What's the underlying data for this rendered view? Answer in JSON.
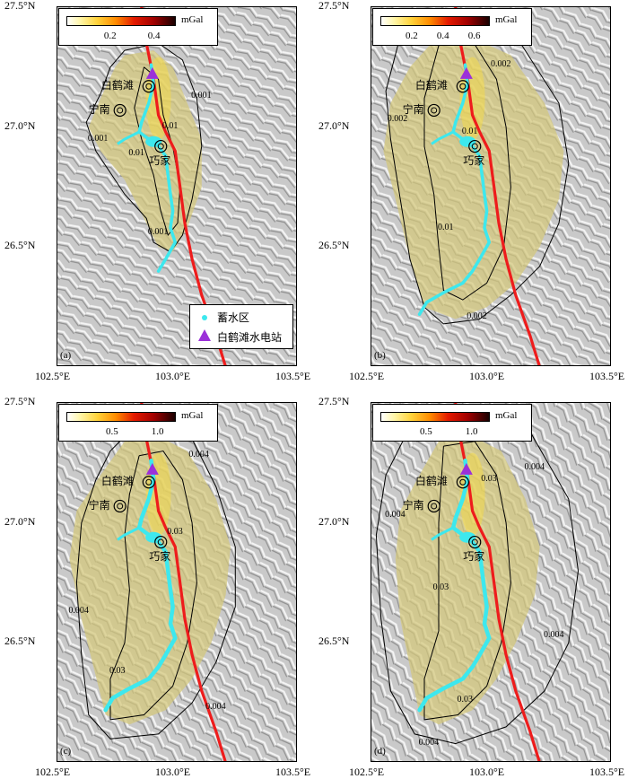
{
  "axes": {
    "lon_ticks": [
      "102.5°E",
      "103.0°E",
      "103.5°E"
    ],
    "lat_ticks": [
      "27.5°N",
      "27.0°N",
      "26.5°N"
    ]
  },
  "places": {
    "baihetan": "白鹤滩",
    "ningnan": "宁南",
    "qiaojia": "巧家"
  },
  "colorbar_unit": "mGal",
  "panels": [
    {
      "letter": "(a)",
      "colorbar_ticks": [
        "0.2",
        "0.4"
      ],
      "contours": [
        "0.001",
        "0.01",
        "0.001",
        "0.01",
        "0.001"
      ]
    },
    {
      "letter": "(b)",
      "colorbar_ticks": [
        "0.2",
        "0.4",
        "0.6"
      ],
      "contours": [
        "0.002",
        "0.002",
        "0.01",
        "0.01",
        "0.002"
      ]
    },
    {
      "letter": "(c)",
      "colorbar_ticks": [
        "0.5",
        "1.0"
      ],
      "contours": [
        "0.004",
        "0.03",
        "0.004",
        "0.03",
        "0.004"
      ]
    },
    {
      "letter": "(d)",
      "colorbar_ticks": [
        "0.5",
        "1.0"
      ],
      "contours": [
        "0.004",
        "0.004",
        "0.03",
        "0.03",
        "0.004",
        "0.03",
        "0.004"
      ]
    }
  ],
  "legend": {
    "reservoir": "蓄水区",
    "station": "白鹤滩水电站"
  },
  "colors": {
    "fault": "#ee1c1c",
    "reservoir": "#3de8ee",
    "station": "#9b30d9",
    "gravity_fill": "#d4c87a",
    "contour": "#000000"
  },
  "chart_data": {
    "type": "map",
    "projection": "lon/lat",
    "xlim": [
      102.5,
      103.5
    ],
    "ylim": [
      26.0,
      27.5
    ],
    "unit": "mGal",
    "colorbar_ranges": [
      [
        0,
        0.5
      ],
      [
        0,
        0.7
      ],
      [
        0,
        1.2
      ],
      [
        0,
        1.2
      ]
    ],
    "points": [
      {
        "name": "白鹤滩",
        "lon": 102.88,
        "lat": 27.17
      },
      {
        "name": "宁南",
        "lon": 102.76,
        "lat": 27.07
      },
      {
        "name": "巧家",
        "lon": 102.93,
        "lat": 26.92
      }
    ]
  }
}
